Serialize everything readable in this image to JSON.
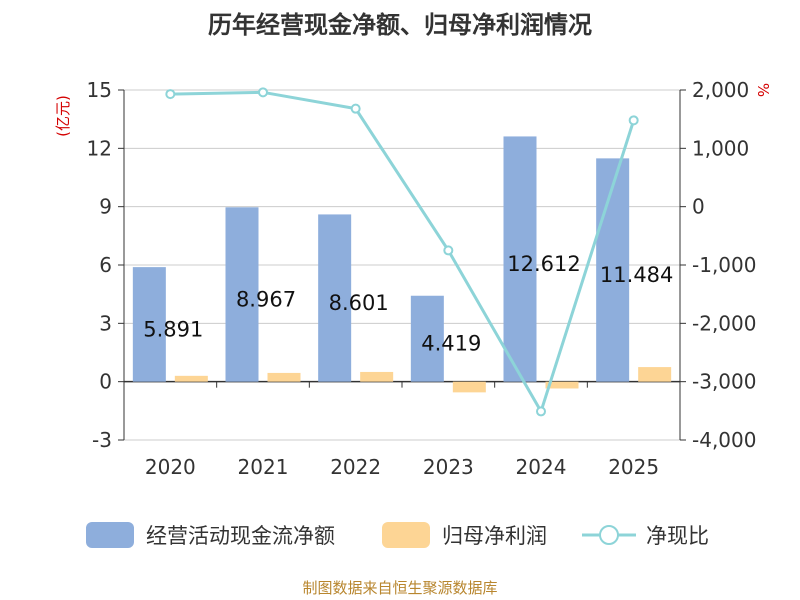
{
  "title": "历年经营现金净额、归母净利润情况",
  "footer": "制图数据来自恒生聚源数据库",
  "chart_data": {
    "type": "bar",
    "categories": [
      "2020",
      "2021",
      "2022",
      "2023",
      "2024",
      "2025"
    ],
    "series": [
      {
        "name": "经营活动现金流净额",
        "kind": "bar",
        "axis": "left",
        "color": "#8eaedc",
        "values": [
          5.891,
          8.967,
          8.601,
          4.419,
          12.612,
          11.484
        ]
      },
      {
        "name": "归母净利润",
        "kind": "bar",
        "axis": "left",
        "color": "#fdd595",
        "values": [
          0.3,
          0.45,
          0.5,
          -0.55,
          -0.35,
          0.75
        ]
      },
      {
        "name": "净现比",
        "kind": "line",
        "axis": "right",
        "color": "#8dd4d8",
        "values": [
          1930,
          1960,
          1680,
          -750,
          -3510,
          1480
        ]
      }
    ],
    "data_labels": [
      "5.891",
      "8.967",
      "8.601",
      "4.419",
      "12.612",
      "11.484"
    ],
    "y_left": {
      "label": "(亿元)",
      "ylim": [
        -3,
        15
      ],
      "ticks": [
        -3,
        0,
        3,
        6,
        9,
        12,
        15
      ],
      "tick_labels": [
        "-3",
        "0",
        "3",
        "6",
        "9",
        "12",
        "15"
      ]
    },
    "y_right": {
      "label": "%",
      "ylim": [
        -4000,
        2000
      ],
      "ticks": [
        -4000,
        -3000,
        -2000,
        -1000,
        0,
        1000,
        2000
      ],
      "tick_labels": [
        "-4,000",
        "-3,000",
        "-2,000",
        "-1,000",
        "0",
        "1,000",
        "2,000"
      ]
    },
    "grid": true,
    "legend_position": "bottom"
  }
}
